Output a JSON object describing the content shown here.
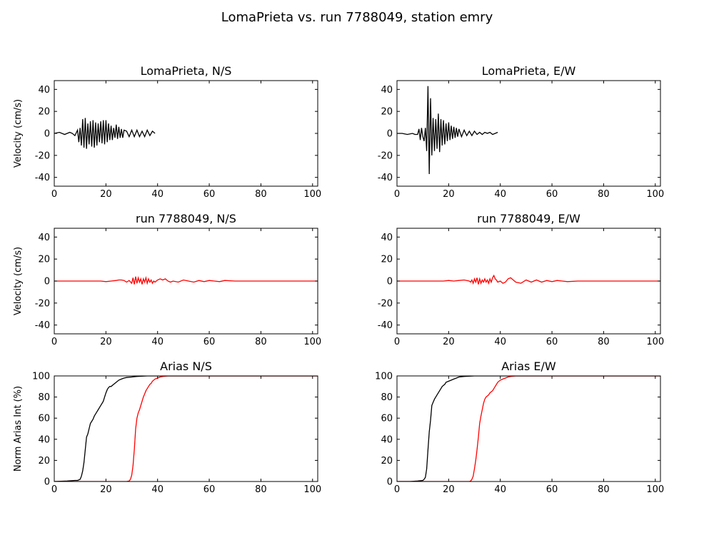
{
  "suptitle": "LomaPrieta vs. run 7788049, station emry",
  "colors": {
    "record": "#000000",
    "sim": "#ff0000",
    "axes": "#000000"
  },
  "chart_data": [
    {
      "type": "line",
      "title": "LomaPrieta, N/S",
      "xlabel": "",
      "ylabel": "Velocity (cm/s)",
      "xlim": [
        0,
        102
      ],
      "ylim": [
        -48,
        48
      ],
      "xticks": [
        0,
        20,
        40,
        60,
        80,
        100
      ],
      "yticks": [
        -40,
        -20,
        0,
        20,
        40
      ],
      "series": [
        {
          "color": "#000000",
          "x": [
            0,
            2,
            4,
            6,
            7,
            8,
            9,
            9.5,
            10,
            10.5,
            11,
            11.5,
            12,
            12.5,
            13,
            13.5,
            14,
            14.5,
            15,
            15.5,
            16,
            16.5,
            17,
            17.5,
            18,
            18.5,
            19,
            19.5,
            20,
            20.5,
            21,
            21.5,
            22,
            22.5,
            23,
            23.5,
            24,
            24.5,
            25,
            25.5,
            26,
            26.5,
            27,
            28,
            29,
            30,
            31,
            32,
            33,
            34,
            35,
            36,
            37,
            38,
            39
          ],
          "y": [
            0,
            1,
            -1,
            1,
            0,
            -2,
            3,
            -8,
            5,
            -11,
            13,
            -13,
            14,
            -14,
            9,
            -10,
            11,
            -12,
            12,
            -13,
            10,
            -11,
            9,
            -8,
            11,
            -9,
            12,
            -10,
            12,
            -8,
            9,
            -6,
            7,
            -6,
            5,
            -4,
            8,
            -5,
            6,
            -4,
            4,
            -4,
            3,
            2,
            -3,
            3,
            -3,
            3,
            -3,
            2,
            -3,
            3,
            -2,
            2,
            0
          ]
        }
      ]
    },
    {
      "type": "line",
      "title": "LomaPrieta, E/W",
      "xlabel": "",
      "ylabel": "",
      "xlim": [
        0,
        102
      ],
      "ylim": [
        -48,
        48
      ],
      "xticks": [
        0,
        20,
        40,
        60,
        80,
        100
      ],
      "yticks": [
        -40,
        -20,
        0,
        20,
        40
      ],
      "series": [
        {
          "color": "#000000",
          "x": [
            0,
            2,
            4,
            6,
            7,
            8,
            8.5,
            9,
            9.5,
            10,
            10.5,
            11,
            11.5,
            12,
            12.5,
            13,
            13.5,
            14,
            14.5,
            15,
            15.5,
            16,
            16.5,
            17,
            17.5,
            18,
            18.5,
            19,
            19.5,
            20,
            20.5,
            21,
            21.5,
            22,
            22.5,
            23,
            23.5,
            24,
            25,
            26,
            27,
            28,
            29,
            30,
            31,
            32,
            33,
            34,
            35,
            36,
            37,
            38,
            39
          ],
          "y": [
            0,
            0,
            -1,
            0,
            -1,
            -1,
            4,
            -6,
            5,
            -3,
            -7,
            5,
            -16,
            43,
            -37,
            32,
            -20,
            14,
            -16,
            13,
            -14,
            18,
            -17,
            13,
            -11,
            12,
            -10,
            9,
            -7,
            10,
            -6,
            7,
            -5,
            6,
            -4,
            5,
            -3,
            4,
            -3,
            3,
            -2,
            2,
            -2,
            2,
            -1,
            1,
            -1,
            1,
            0,
            1,
            -1,
            0,
            1
          ]
        }
      ]
    },
    {
      "type": "line",
      "title": "run 7788049, N/S",
      "xlabel": "",
      "ylabel": "Velocity (cm/s)",
      "xlim": [
        0,
        102
      ],
      "ylim": [
        -48,
        48
      ],
      "xticks": [
        0,
        20,
        40,
        60,
        80,
        100
      ],
      "yticks": [
        -40,
        -20,
        0,
        20,
        40
      ],
      "series": [
        {
          "color": "#ff0000",
          "x": [
            0,
            10,
            15,
            18,
            20,
            22,
            24,
            25,
            26,
            27,
            28,
            29,
            30,
            30.5,
            31,
            31.5,
            32,
            32.5,
            33,
            33.5,
            34,
            34.5,
            35,
            35.5,
            36,
            36.5,
            37,
            37.5,
            38,
            38.5,
            39,
            40,
            41,
            42,
            43,
            44,
            45,
            46,
            48,
            50,
            52,
            54,
            56,
            58,
            60,
            62,
            64,
            66,
            70,
            75,
            80,
            90,
            100,
            102
          ],
          "y": [
            0,
            0,
            0,
            0,
            -0.5,
            0,
            0.5,
            1,
            1,
            0.5,
            -1,
            0.5,
            -2,
            3,
            -3,
            4,
            -2,
            3,
            -1,
            2,
            -3,
            2,
            -1,
            3,
            -2,
            2,
            -1,
            1,
            -2,
            0,
            -1,
            1,
            2,
            1,
            2,
            0,
            -1,
            0,
            -1,
            1,
            0,
            -1,
            0.5,
            -0.5,
            0.5,
            0,
            -0.5,
            0.5,
            0,
            0,
            0,
            0,
            0,
            0
          ]
        }
      ]
    },
    {
      "type": "line",
      "title": "run 7788049, E/W",
      "xlabel": "",
      "ylabel": "",
      "xlim": [
        0,
        102
      ],
      "ylim": [
        -48,
        48
      ],
      "xticks": [
        0,
        20,
        40,
        60,
        80,
        100
      ],
      "yticks": [
        -40,
        -20,
        0,
        20,
        40
      ],
      "series": [
        {
          "color": "#ff0000",
          "x": [
            0,
            10,
            15,
            18,
            20,
            22,
            24,
            26,
            28,
            28.5,
            29,
            29.5,
            30,
            30.5,
            31,
            31.5,
            32,
            32.5,
            33,
            33.5,
            34,
            34.5,
            35,
            35.5,
            36,
            36.5,
            37,
            37.5,
            38,
            38.5,
            39,
            40,
            41,
            42,
            43,
            44,
            45,
            46,
            48,
            50,
            52,
            54,
            56,
            58,
            60,
            62,
            64,
            66,
            70,
            75,
            80,
            90,
            100,
            102
          ],
          "y": [
            0,
            0,
            0,
            0,
            0.5,
            0,
            0.5,
            1,
            0,
            -1,
            1,
            -2,
            2,
            -1,
            3,
            -3,
            2,
            -2,
            1,
            -1,
            2,
            -1,
            1,
            -2,
            2,
            -1,
            3,
            5,
            2,
            1,
            -1,
            0,
            -2,
            -1,
            2,
            3,
            1,
            -1,
            -2,
            1,
            -1,
            1,
            -1,
            0.5,
            -0.5,
            0.5,
            0,
            -0.5,
            0,
            0,
            0,
            0,
            0,
            0
          ]
        }
      ]
    },
    {
      "type": "line",
      "title": "Arias N/S",
      "xlabel": "",
      "ylabel": "Norm Arias Int (%)",
      "xlim": [
        0,
        102
      ],
      "ylim": [
        0,
        100
      ],
      "xticks": [
        0,
        20,
        40,
        60,
        80,
        100
      ],
      "yticks": [
        0,
        20,
        40,
        60,
        80,
        100
      ],
      "series": [
        {
          "color": "#000000",
          "x": [
            0,
            5,
            8,
            9,
            10,
            10.5,
            11,
            11.5,
            12,
            12.5,
            13,
            13.5,
            14,
            14.5,
            15,
            15.5,
            16,
            16.5,
            17,
            17.5,
            18,
            18.5,
            19,
            19.5,
            20,
            20.5,
            21,
            21.5,
            22,
            23,
            24,
            25,
            26,
            27,
            28,
            30,
            32,
            34,
            36,
            38,
            40,
            102
          ],
          "y": [
            0,
            0.5,
            1,
            1,
            2,
            5,
            10,
            18,
            30,
            42,
            45,
            50,
            55,
            57,
            59,
            62,
            64,
            66,
            68,
            70,
            72,
            74,
            76,
            80,
            84,
            87,
            89,
            90,
            90,
            92,
            94,
            96,
            97,
            98,
            98.5,
            99,
            99.5,
            99.8,
            100,
            100,
            100,
            100
          ]
        }
      ]
    }
  ]
}
